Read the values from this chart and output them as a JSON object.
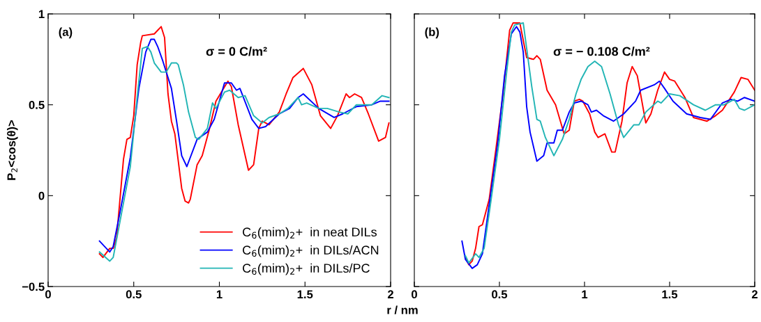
{
  "chart_data": [
    {
      "type": "line",
      "ylabel": "P$_{2}$<cos(θ)>",
      "xlabel": "r / nm",
      "annotations": [
        "(a)",
        "σ = 0 C/m²"
      ],
      "xlim": [
        0,
        2
      ],
      "ylim": [
        -0.5,
        1
      ],
      "xticks": [
        0,
        0.5,
        1,
        1.5,
        2
      ],
      "yticks": [
        {
          "value": -0.5,
          "label": "−0.5"
        },
        0,
        0.5,
        1
      ],
      "grid": false,
      "legend": "bottom right",
      "line_style": "solid",
      "marker": "none",
      "series": [
        {
          "name": "C$_{6}$(mim)$_{2}$+  in neat DILs",
          "color": "#ff0000",
          "x": [
            0.3,
            0.32,
            0.36,
            0.38,
            0.4,
            0.44,
            0.46,
            0.48,
            0.5,
            0.52,
            0.54,
            0.55,
            0.62,
            0.64,
            0.66,
            0.68,
            0.7,
            0.72,
            0.74,
            0.78,
            0.8,
            0.82,
            0.83,
            0.87,
            0.9,
            0.94,
            0.98,
            1.05,
            1.07,
            1.11,
            1.17,
            1.2,
            1.23,
            1.25,
            1.29,
            1.35,
            1.39,
            1.43,
            1.49,
            1.54,
            1.59,
            1.65,
            1.69,
            1.74,
            1.76,
            1.79,
            1.83,
            1.87,
            1.93,
            1.97,
            1.99
          ],
          "values": [
            -0.32,
            -0.34,
            -0.29,
            -0.29,
            -0.23,
            0.2,
            0.31,
            0.32,
            0.44,
            0.72,
            0.84,
            0.88,
            0.89,
            0.91,
            0.93,
            0.87,
            0.56,
            0.41,
            0.34,
            0.04,
            -0.03,
            -0.04,
            -0.02,
            0.17,
            0.22,
            0.36,
            0.52,
            0.63,
            0.6,
            0.39,
            0.14,
            0.17,
            0.37,
            0.41,
            0.39,
            0.46,
            0.56,
            0.65,
            0.7,
            0.61,
            0.44,
            0.37,
            0.44,
            0.56,
            0.54,
            0.56,
            0.54,
            0.45,
            0.3,
            0.32,
            0.4
          ]
        },
        {
          "name": "C$_{6}$(mim)$_{2}$+  in DILs/ACN",
          "color": "#0000ff",
          "x": [
            0.3,
            0.36,
            0.38,
            0.42,
            0.48,
            0.53,
            0.57,
            0.6,
            0.62,
            0.64,
            0.67,
            0.72,
            0.75,
            0.78,
            0.81,
            0.87,
            0.93,
            0.97,
            1.03,
            1.07,
            1.1,
            1.12,
            1.19,
            1.23,
            1.27,
            1.35,
            1.41,
            1.46,
            1.49,
            1.58,
            1.67,
            1.72,
            1.8,
            1.89,
            1.94,
            1.99
          ],
          "values": [
            -0.25,
            -0.31,
            -0.28,
            -0.09,
            0.21,
            0.59,
            0.79,
            0.86,
            0.86,
            0.82,
            0.74,
            0.59,
            0.41,
            0.22,
            0.16,
            0.31,
            0.35,
            0.42,
            0.62,
            0.62,
            0.58,
            0.59,
            0.42,
            0.37,
            0.38,
            0.45,
            0.48,
            0.54,
            0.56,
            0.48,
            0.43,
            0.45,
            0.49,
            0.5,
            0.52,
            0.52
          ]
        },
        {
          "name": "C$_{6}$(mim)$_{2}$+  in DILs/PC",
          "color": "#22b5b5",
          "x": [
            0.3,
            0.36,
            0.38,
            0.43,
            0.48,
            0.52,
            0.55,
            0.58,
            0.6,
            0.62,
            0.66,
            0.69,
            0.72,
            0.75,
            0.76,
            0.79,
            0.82,
            0.86,
            0.88,
            0.93,
            0.96,
            0.98,
            1.03,
            1.06,
            1.11,
            1.15,
            1.2,
            1.25,
            1.29,
            1.35,
            1.4,
            1.46,
            1.48,
            1.51,
            1.58,
            1.63,
            1.7,
            1.75,
            1.8,
            1.89,
            1.95,
            1.99
          ],
          "values": [
            -0.31,
            -0.36,
            -0.34,
            -0.09,
            0.16,
            0.54,
            0.81,
            0.82,
            0.79,
            0.73,
            0.68,
            0.68,
            0.73,
            0.73,
            0.72,
            0.61,
            0.46,
            0.32,
            0.31,
            0.37,
            0.51,
            0.48,
            0.57,
            0.58,
            0.54,
            0.55,
            0.44,
            0.4,
            0.43,
            0.45,
            0.48,
            0.54,
            0.5,
            0.51,
            0.48,
            0.48,
            0.46,
            0.45,
            0.5,
            0.5,
            0.55,
            0.54
          ]
        }
      ]
    },
    {
      "type": "line",
      "annotations": [
        "(b)",
        "σ = − 0.108 C/m²"
      ],
      "xlim": [
        0,
        2
      ],
      "ylim": [
        -0.5,
        1
      ],
      "xticks": [
        0,
        0.5,
        1,
        1.5,
        2
      ],
      "yticks": [
        -0.5,
        0,
        0.5,
        1
      ],
      "tick_labels": "x",
      "grid": false,
      "line_style": "solid",
      "marker": "none",
      "series": [
        {
          "color": "#ff0000",
          "x": [
            0.3,
            0.32,
            0.34,
            0.36,
            0.38,
            0.4,
            0.44,
            0.48,
            0.52,
            0.56,
            0.58,
            0.62,
            0.66,
            0.7,
            0.72,
            0.74,
            0.78,
            0.83,
            0.88,
            0.91,
            0.94,
            0.97,
            0.99,
            1.03,
            1.06,
            1.08,
            1.12,
            1.16,
            1.18,
            1.22,
            1.25,
            1.28,
            1.31,
            1.36,
            1.39,
            1.43,
            1.47,
            1.5,
            1.53,
            1.59,
            1.64,
            1.72,
            1.77,
            1.81,
            1.88,
            1.92,
            1.96,
            2.0
          ],
          "values": [
            -0.34,
            -0.38,
            -0.36,
            -0.29,
            -0.17,
            -0.16,
            -0.02,
            0.26,
            0.55,
            0.91,
            0.95,
            0.95,
            0.76,
            0.75,
            0.77,
            0.75,
            0.58,
            0.5,
            0.34,
            0.36,
            0.52,
            0.53,
            0.52,
            0.45,
            0.35,
            0.32,
            0.34,
            0.24,
            0.24,
            0.41,
            0.62,
            0.71,
            0.66,
            0.4,
            0.45,
            0.58,
            0.68,
            0.64,
            0.63,
            0.54,
            0.43,
            0.41,
            0.44,
            0.47,
            0.57,
            0.65,
            0.64,
            0.58
          ]
        },
        {
          "color": "#0000ff",
          "x": [
            0.28,
            0.3,
            0.34,
            0.37,
            0.4,
            0.44,
            0.49,
            0.53,
            0.57,
            0.6,
            0.62,
            0.64,
            0.66,
            0.68,
            0.72,
            0.76,
            0.78,
            0.82,
            0.84,
            0.87,
            0.91,
            0.94,
            0.98,
            1.02,
            1.04,
            1.07,
            1.11,
            1.17,
            1.23,
            1.3,
            1.33,
            1.41,
            1.44,
            1.47,
            1.52,
            1.6,
            1.68,
            1.74,
            1.81,
            1.86,
            1.9,
            1.94,
            2.0
          ],
          "values": [
            -0.25,
            -0.35,
            -0.4,
            -0.38,
            -0.32,
            -0.05,
            0.29,
            0.66,
            0.89,
            0.93,
            0.9,
            0.79,
            0.49,
            0.35,
            0.19,
            0.22,
            0.29,
            0.29,
            0.36,
            0.36,
            0.46,
            0.51,
            0.52,
            0.5,
            0.46,
            0.47,
            0.44,
            0.41,
            0.45,
            0.52,
            0.58,
            0.61,
            0.63,
            0.59,
            0.52,
            0.45,
            0.43,
            0.42,
            0.51,
            0.53,
            0.52,
            0.54,
            0.52
          ]
        },
        {
          "color": "#22b5b5",
          "x": [
            0.3,
            0.32,
            0.36,
            0.38,
            0.41,
            0.45,
            0.5,
            0.54,
            0.57,
            0.59,
            0.64,
            0.66,
            0.69,
            0.72,
            0.74,
            0.77,
            0.82,
            0.87,
            0.91,
            0.95,
            0.98,
            1.02,
            1.06,
            1.1,
            1.15,
            1.2,
            1.23,
            1.29,
            1.32,
            1.36,
            1.43,
            1.45,
            1.5,
            1.56,
            1.64,
            1.71,
            1.77,
            1.82,
            1.88,
            1.91,
            1.94,
            2.0
          ],
          "values": [
            -0.33,
            -0.37,
            -0.32,
            -0.34,
            -0.29,
            -0.03,
            0.31,
            0.66,
            0.9,
            0.94,
            0.95,
            0.81,
            0.6,
            0.42,
            0.41,
            0.32,
            0.22,
            0.31,
            0.42,
            0.56,
            0.64,
            0.71,
            0.74,
            0.71,
            0.56,
            0.39,
            0.32,
            0.39,
            0.39,
            0.46,
            0.52,
            0.51,
            0.56,
            0.55,
            0.5,
            0.47,
            0.5,
            0.5,
            0.53,
            0.48,
            0.47,
            0.5
          ]
        }
      ]
    }
  ]
}
